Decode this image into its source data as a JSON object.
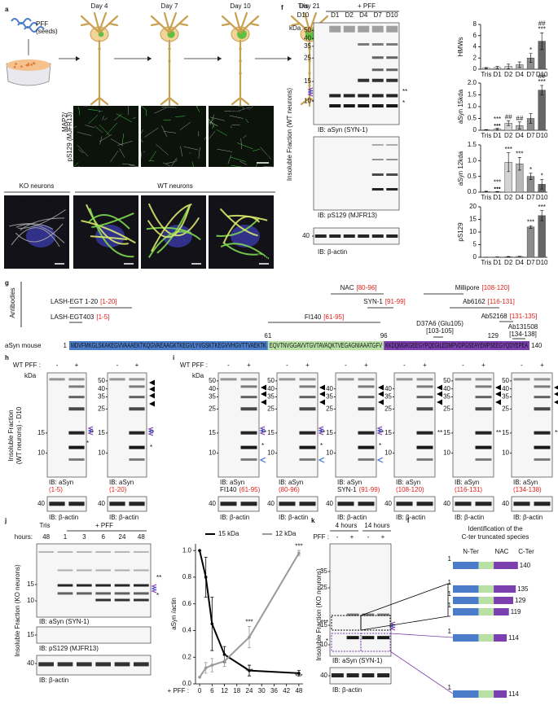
{
  "a": {
    "label": "a",
    "seed": [
      "PFF",
      "(seeds)"
    ],
    "days": [
      "Day 4",
      "Day 7",
      "Day 10",
      "Day 21"
    ],
    "micrographs": [
      "Day 4",
      "Day 7",
      "Day 10"
    ],
    "stain": [
      "MAP2/",
      "pS129 (MJFR13)"
    ],
    "scale": "40 µm"
  },
  "be": {
    "ko": "KO neurons",
    "wt": "WT neurons",
    "panels": [
      {
        "label": "b",
        "stains": [
          "aSyn",
          "pS129"
        ]
      },
      {
        "label": "c",
        "stains": [
          "aSyn",
          "pS129"
        ]
      },
      {
        "label": "d",
        "stains": [
          "ub",
          "pS129"
        ]
      },
      {
        "label": "e",
        "stains": [
          "p62",
          "pS129"
        ]
      }
    ],
    "scale": "5 µm"
  },
  "marks": [
    "**",
    "*",
    "***"
  ],
  "f": {
    "label": "f",
    "tris": "Tris",
    "tris_day": "D10",
    "pff": "+ PFF",
    "lanes": [
      "D1",
      "D2",
      "D4",
      "D7",
      "D10"
    ],
    "kda": "kDa",
    "markers": [
      "50",
      "40",
      "35",
      "25",
      "15",
      "10"
    ],
    "blots": [
      "IB: aSyn (SYN-1)",
      "IB: pS129 (MJFR13)",
      "IB: β-actin"
    ],
    "actin_marker": "40",
    "fraction": "Insoluble Fraction (WT neurons)",
    "charts": [
      {
        "type": "bar",
        "ylabel": "HMWs",
        "categories": [
          "Tris",
          "D1",
          "D2",
          "D4",
          "D7",
          "D10"
        ],
        "values": [
          0.2,
          0.3,
          0.5,
          0.8,
          2,
          5
        ],
        "errors": [
          0.1,
          0.2,
          0.4,
          0.5,
          0.8,
          1.5
        ],
        "ylim": [
          0,
          8
        ],
        "yticks": [
          0,
          2,
          4,
          6,
          8
        ],
        "annotations": [
          null,
          null,
          null,
          null,
          [
            "*"
          ],
          [
            "##",
            "***"
          ]
        ]
      },
      {
        "type": "bar",
        "ylabel": "aSyn 15kda",
        "categories": [
          "Tris",
          "D1",
          "D2",
          "D4",
          "D7",
          "D10"
        ],
        "values": [
          0.02,
          0.05,
          0.3,
          0.2,
          0.5,
          1.7
        ],
        "errors": [
          0.01,
          0.03,
          0.1,
          0.15,
          0.2,
          0.2
        ],
        "ylim": [
          0,
          2
        ],
        "yticks": [
          0,
          0.5,
          {
            "value": 1,
            "label": "1.0"
          },
          1.5,
          {
            "value": 2,
            "label": "2.0"
          }
        ],
        "annotations": [
          null,
          [
            "***",
            "•••"
          ],
          [
            "##"
          ],
          [
            "##"
          ],
          null,
          [
            "##",
            "***"
          ]
        ]
      },
      {
        "type": "bar",
        "ylabel": "aSyn 12kda",
        "categories": [
          "Tris",
          "D1",
          "D2",
          "D4",
          "D7",
          "D10"
        ],
        "values": [
          0.02,
          0.01,
          0.95,
          0.9,
          0.5,
          0.25
        ],
        "errors": [
          0.01,
          0.01,
          0.3,
          0.2,
          0.1,
          0.15
        ],
        "ylim": [
          0,
          1.5
        ],
        "yticks": [
          {
            "value": 0,
            "label": "0.0"
          },
          0.5,
          {
            "value": 1,
            "label": "1.0"
          },
          1.5
        ],
        "annotations": [
          null,
          [
            "***",
            "•••"
          ],
          [
            "***"
          ],
          [
            "***"
          ],
          [
            "*"
          ],
          [
            "*"
          ]
        ]
      },
      {
        "type": "bar",
        "ylabel": "pS129",
        "categories": [
          "Tris",
          "D1",
          "D2",
          "D4",
          "D7",
          "D10"
        ],
        "values": [
          0,
          0.1,
          0.2,
          0.3,
          12,
          16.5
        ],
        "errors": [
          0,
          0.05,
          0.1,
          0.1,
          0.5,
          2
        ],
        "ylim": [
          0,
          20
        ],
        "yticks": [
          0,
          5,
          10,
          15,
          20
        ],
        "annotations": [
          null,
          null,
          null,
          null,
          [
            "***"
          ],
          [
            "***"
          ]
        ]
      }
    ]
  },
  "g": {
    "label": "g",
    "antibodies_title": "Antibodies",
    "antibodies": [
      {
        "name": "LASH-EGT 1-20",
        "range": "[1-20]"
      },
      {
        "name": "LASH-EGT403",
        "range": "[1-5]"
      },
      {
        "name": "NAC",
        "range": "[80-96]"
      },
      {
        "name": "SYN-1",
        "range": "[91-99]"
      },
      {
        "name": "FI140",
        "range": "[61-95]"
      },
      {
        "name": "Millipore",
        "range": "[108-120]"
      },
      {
        "name": "Ab6162",
        "range": "[116-131]"
      },
      {
        "name": "Ab52168",
        "range": "[131-135]"
      },
      {
        "name": "D37A6 (Glu105)",
        "range": "[103-105]"
      },
      {
        "name": "Ab131508",
        "range": "[134-138]"
      }
    ],
    "protein": "aSyn mouse",
    "positions": [
      1,
      61,
      96,
      129,
      140
    ],
    "sequence": [
      "MDVFMKGLSKAKEGVVAAAEKTKQGVAEAAGKTKEGVLYVGSKTKEGVVHGVTTVAEKTK",
      "EQVTNVGGAVVTGVTAVAQKTVEGAGNIAAATGFV",
      "KKDQMGKGEEGYPQEGILEDMPVDPGSEAYEMPSEEGYQDYEPEA"
    ]
  },
  "h": {
    "label": "h",
    "pff_label": "WT PFF :",
    "lanes": [
      "-",
      "+"
    ],
    "kda": "kDa",
    "fraction": [
      "Insoluble Fraction",
      "(WT neurons) - D10"
    ],
    "blots": [
      {
        "ib": "IB: aSyn",
        "epitope": "(1-5)",
        "markers": [
          "15",
          "10"
        ]
      },
      {
        "ib": "IB: aSyn",
        "epitope": "(1-20)",
        "markers": [
          "50",
          "40",
          "35",
          "25",
          "15",
          "10"
        ]
      }
    ],
    "actin_marker": "40",
    "actin": "IB: β-actin"
  },
  "i": {
    "label": "i",
    "pff_label": "WT PFF :",
    "lanes": [
      "-",
      "+"
    ],
    "kda": "kDa",
    "blots": [
      {
        "ib": "IB: aSyn",
        "clone": "FI140",
        "epitope": "(61-95)",
        "markers": [
          "50",
          "40",
          "35",
          "25",
          "15",
          "10"
        ]
      },
      {
        "ib": "IB: aSyn",
        "epitope": "(80-96)",
        "markers": [
          "50",
          "40",
          "35",
          "25",
          "15",
          "10"
        ]
      },
      {
        "ib": "IB: aSyn",
        "clone": "SYN-1",
        "epitope": "(91-99)",
        "markers": [
          "40",
          "35",
          "25",
          "15",
          "10"
        ]
      },
      {
        "ib": "IB: aSyn",
        "epitope": "(108-120)",
        "markers": [
          "40",
          "35",
          "25",
          "15",
          "10"
        ]
      },
      {
        "ib": "IB: aSyn",
        "epitope": "(116-131)",
        "markers": [
          "50",
          "40",
          "35",
          "25",
          "15",
          "10"
        ]
      },
      {
        "ib": "IB: aSyn",
        "epitope": "(134-138)",
        "markers": [
          "50",
          "40",
          "35",
          "25",
          "15",
          "10"
        ]
      }
    ],
    "actin_marker": "40",
    "actin": "IB: β-actin"
  },
  "j": {
    "label": "j",
    "tris": "Tris",
    "pff": "+ PFF",
    "hours_label": "hours:",
    "hours": [
      "48",
      "1",
      "3",
      "6",
      "24",
      "48"
    ],
    "markers": [
      "15",
      "10"
    ],
    "ps_marker": "15",
    "actin_marker": "40",
    "blots": [
      "IB: aSyn (SYN-1)",
      "IB: pS129 (MJFR13)",
      "IB: β-actin"
    ],
    "fraction": "Insoluble Fraction (KO neurons)",
    "chart": {
      "type": "line",
      "xlabel": "+ PFF :",
      "ylabel": "aSyn /actin",
      "x": [
        0,
        3,
        6,
        12,
        24,
        48
      ],
      "series": [
        {
          "name": "15 kDa",
          "color": "#000000",
          "values": [
            1.0,
            0.8,
            0.45,
            0.22,
            0.1,
            0.08
          ],
          "errors": [
            0,
            0.15,
            0.2,
            0.06,
            0.04,
            0.02
          ],
          "annotations": [
            null,
            null,
            null,
            null,
            "***",
            "***"
          ]
        },
        {
          "name": "12 kDa",
          "color": "#999999",
          "values": [
            0.05,
            0.12,
            0.14,
            0.17,
            0.35,
            0.98
          ],
          "errors": [
            0,
            0.04,
            0.05,
            0.04,
            0.08,
            0.02
          ],
          "annotations": [
            null,
            null,
            null,
            null,
            "***",
            "***"
          ]
        }
      ],
      "xlim": [
        -2,
        50
      ],
      "xticks": [
        0,
        6,
        12,
        18,
        24,
        30,
        36,
        42,
        48
      ],
      "ylim": [
        0,
        1.05
      ],
      "yticks": [
        {
          "value": 0,
          "label": "0.0"
        },
        0.2,
        0.4,
        0.6,
        0.8,
        {
          "value": 1,
          "label": "1.0"
        }
      ]
    }
  },
  "k": {
    "label": "k",
    "times": [
      "4 hours",
      "14 hours"
    ],
    "pff": "PFF :",
    "lanes": [
      "-",
      "+",
      "-",
      "+"
    ],
    "markers": [
      "35",
      "25",
      "15",
      "10"
    ],
    "actin_marker": "40",
    "blots": [
      "IB: aSyn (SYN-1)",
      "IB: β-actin"
    ],
    "fraction": "Insoluble Fraction (KO neurons)"
  },
  "l": {
    "label": "l",
    "title": [
      "Identification of the",
      "C-ter truncated species"
    ],
    "domains": [
      "N-Ter",
      "NAC",
      "C-Ter"
    ],
    "start": 1,
    "species": [
      140,
      135,
      129,
      119,
      114,
      114
    ]
  }
}
